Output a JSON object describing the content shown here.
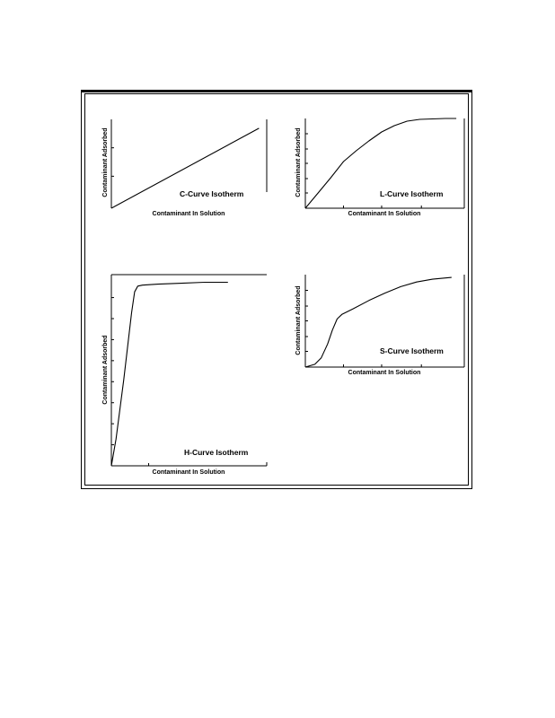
{
  "chart_data": [
    {
      "type": "line",
      "panel": "C",
      "label": "C-Curve Isotherm",
      "xlabel": "Contaminant In Solution",
      "ylabel": "Contaminant Adsorbed",
      "xlim": [
        0,
        1
      ],
      "ylim": [
        0,
        1
      ],
      "grid": false,
      "yticks": [
        0.36,
        0.68
      ],
      "xticks": [],
      "series": [
        {
          "x": [
            0,
            0.95
          ],
          "y": [
            0,
            0.9
          ]
        }
      ]
    },
    {
      "type": "line",
      "panel": "L",
      "label": "L-Curve Isotherm",
      "xlabel": "Contaminant In Solution",
      "ylabel": "Contaminant Adsorbed",
      "xlim": [
        0,
        1
      ],
      "ylim": [
        0,
        1
      ],
      "grid": false,
      "yticks": [
        0.17,
        0.33,
        0.5,
        0.66,
        0.83
      ],
      "xticks": [
        0.24,
        0.48,
        0.73
      ],
      "series": [
        {
          "x": [
            0,
            0.08,
            0.16,
            0.24,
            0.32,
            0.4,
            0.48,
            0.56,
            0.64,
            0.72,
            0.8,
            0.88,
            0.95
          ],
          "y": [
            0,
            0.17,
            0.34,
            0.52,
            0.64,
            0.75,
            0.85,
            0.92,
            0.97,
            0.99,
            0.995,
            1.0,
            1.0
          ]
        }
      ]
    },
    {
      "type": "line",
      "panel": "H",
      "label": "H-Curve Isotherm",
      "xlabel": "Contaminant In Solution",
      "ylabel": "Contaminant Adsorbed",
      "xlim": [
        0,
        1
      ],
      "ylim": [
        0,
        1
      ],
      "grid": false,
      "yticks": [
        0.11,
        0.22,
        0.33,
        0.44,
        0.55,
        0.66,
        0.77,
        0.88
      ],
      "xticks": [
        0.24
      ],
      "series": [
        {
          "x": [
            0,
            0.03,
            0.08,
            0.13,
            0.15,
            0.17,
            0.2,
            0.3,
            0.45,
            0.6,
            0.75
          ],
          "y": [
            0,
            0.14,
            0.45,
            0.8,
            0.91,
            0.94,
            0.945,
            0.95,
            0.955,
            0.96,
            0.96
          ]
        }
      ]
    },
    {
      "type": "line",
      "panel": "S",
      "label": "S-Curve Isotherm",
      "xlabel": "Contaminant In Solution",
      "ylabel": "Contaminant Adsorbed",
      "xlim": [
        0,
        1
      ],
      "ylim": [
        0,
        1
      ],
      "grid": false,
      "yticks": [
        0.17,
        0.33,
        0.5,
        0.66,
        0.83
      ],
      "xticks": [
        0.24,
        0.48,
        0.73
      ],
      "series": [
        {
          "x": [
            0,
            0.06,
            0.1,
            0.14,
            0.17,
            0.2,
            0.23,
            0.3,
            0.4,
            0.5,
            0.6,
            0.7,
            0.8,
            0.92
          ],
          "y": [
            0,
            0.03,
            0.1,
            0.25,
            0.4,
            0.52,
            0.57,
            0.63,
            0.72,
            0.8,
            0.87,
            0.92,
            0.95,
            0.97
          ]
        }
      ]
    }
  ]
}
